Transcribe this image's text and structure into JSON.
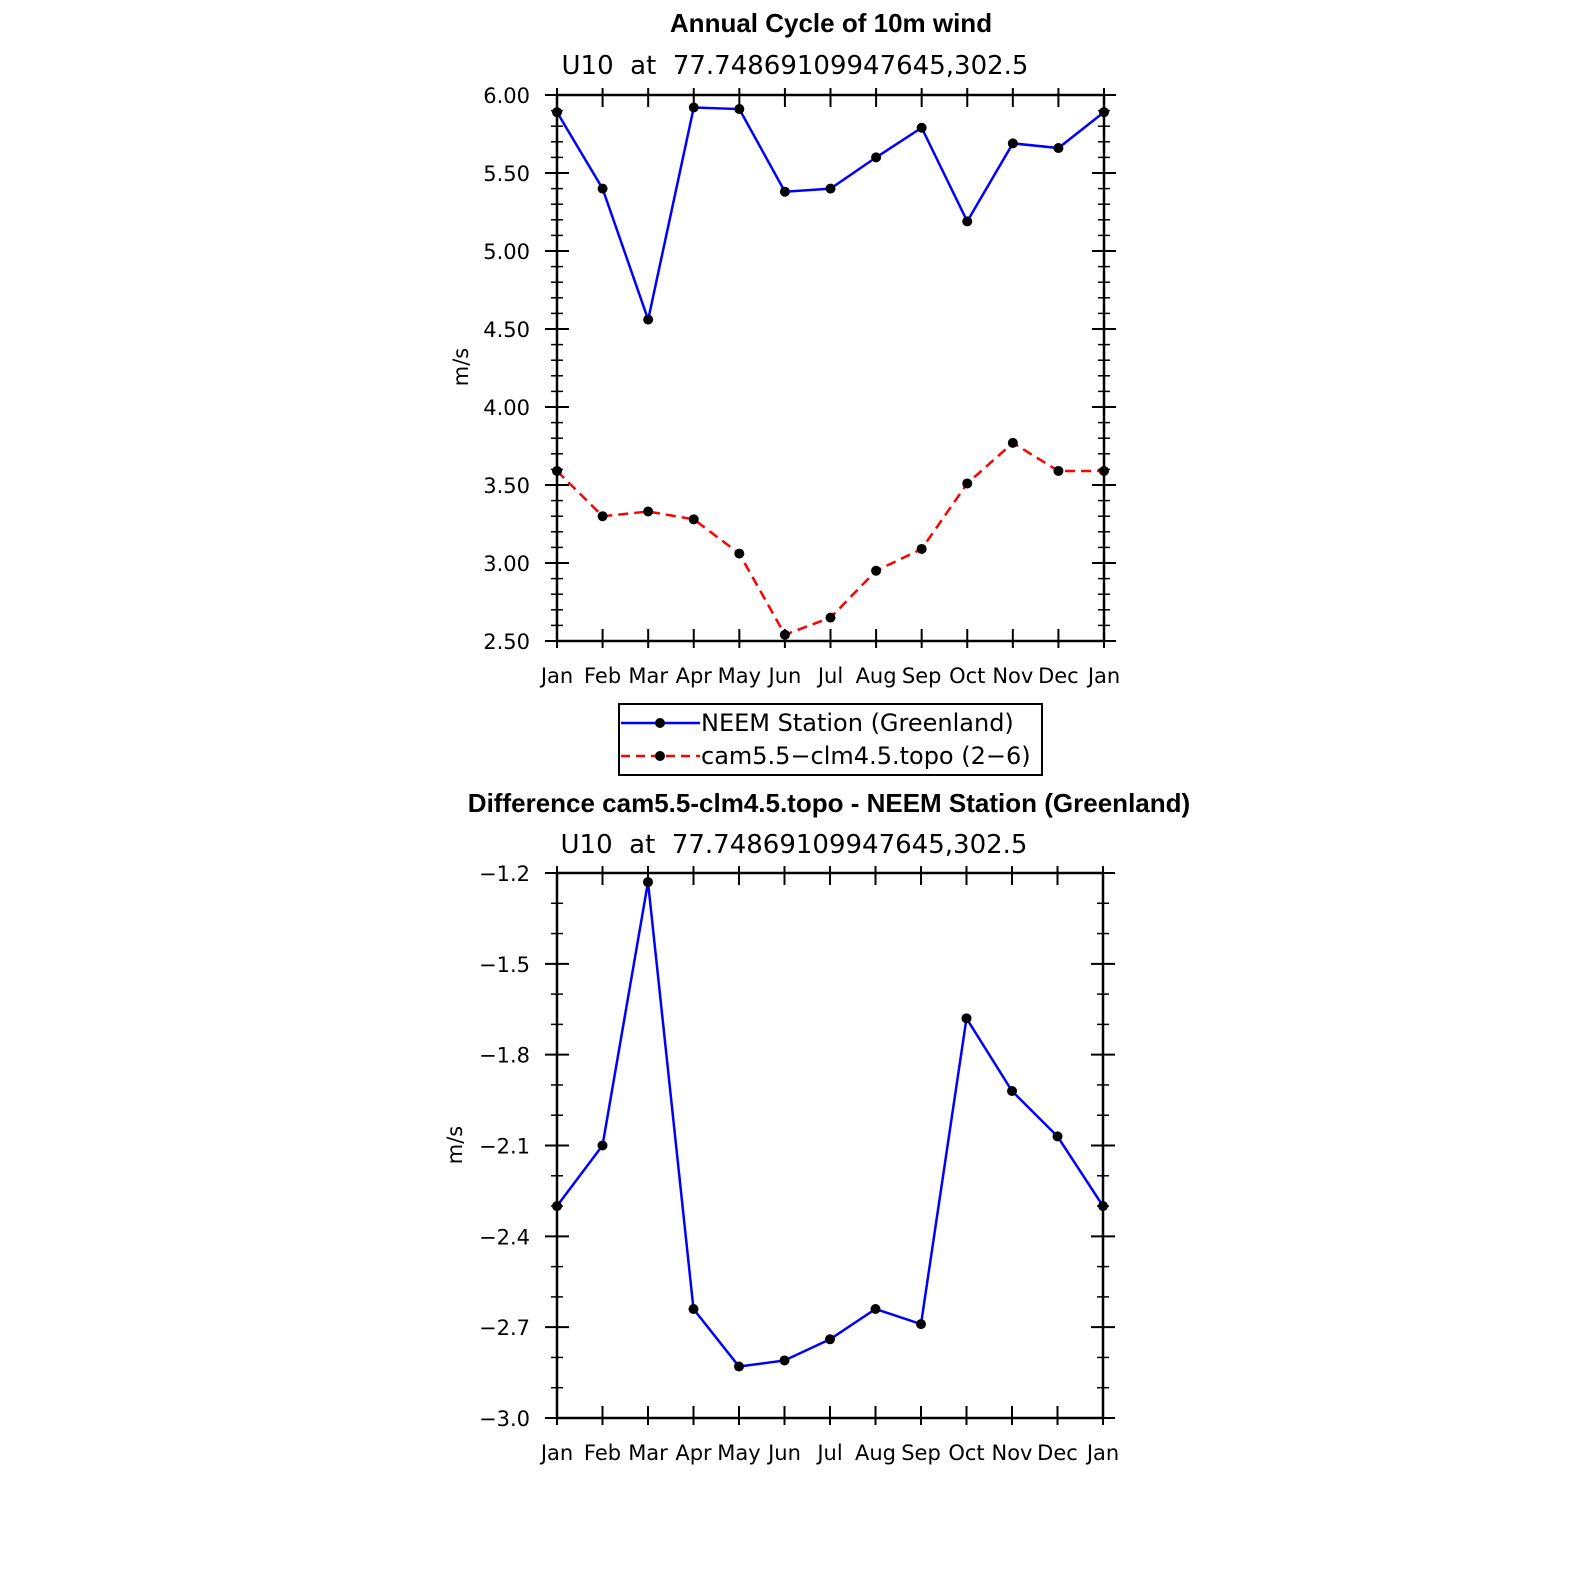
{
  "chart_data": [
    {
      "type": "line",
      "title": "Annual Cycle of 10m wind",
      "subtitle": "U10  at  77.74869109947645,302.5",
      "xlabel": "",
      "ylabel": "m/s",
      "categories": [
        "Jan",
        "Feb",
        "Mar",
        "Apr",
        "May",
        "Jun",
        "Jul",
        "Aug",
        "Sep",
        "Oct",
        "Nov",
        "Dec",
        "Jan"
      ],
      "ylim": [
        2.5,
        6.0
      ],
      "y_ticks": [
        "2.50",
        "3.00",
        "3.50",
        "4.00",
        "4.50",
        "5.00",
        "5.50",
        "6.00"
      ],
      "grid": false,
      "legend_placement": "bottom-center",
      "series": [
        {
          "name": "NEEM Station (Greenland)",
          "color": "#0000ff",
          "dash": "solid",
          "values": [
            5.89,
            5.4,
            4.56,
            5.92,
            5.91,
            5.38,
            5.4,
            5.6,
            5.79,
            5.19,
            5.69,
            5.66,
            5.89
          ]
        },
        {
          "name": "cam5.5−clm4.5.topo (2−6)",
          "color": "#ff0000",
          "dash": "dashed",
          "values": [
            3.59,
            3.3,
            3.33,
            3.28,
            3.06,
            2.54,
            2.65,
            2.95,
            3.09,
            3.51,
            3.77,
            3.59,
            3.59
          ]
        }
      ]
    },
    {
      "type": "line",
      "title": "Difference cam5.5-clm4.5.topo - NEEM Station (Greenland)",
      "subtitle": "U10  at  77.74869109947645,302.5",
      "xlabel": "",
      "ylabel": "m/s",
      "categories": [
        "Jan",
        "Feb",
        "Mar",
        "Apr",
        "May",
        "Jun",
        "Jul",
        "Aug",
        "Sep",
        "Oct",
        "Nov",
        "Dec",
        "Jan"
      ],
      "ylim": [
        -3.0,
        -1.2
      ],
      "y_ticks": [
        "−3.0",
        "−2.7",
        "−2.4",
        "−2.1",
        "−1.8",
        "−1.5",
        "−1.2"
      ],
      "grid": false,
      "series": [
        {
          "color": "#0000ff",
          "dash": "solid",
          "values": [
            -2.3,
            -2.1,
            -1.23,
            -2.64,
            -2.83,
            -2.81,
            -2.74,
            -2.64,
            -2.69,
            -1.68,
            -1.92,
            -2.07,
            -2.3
          ]
        }
      ]
    }
  ]
}
